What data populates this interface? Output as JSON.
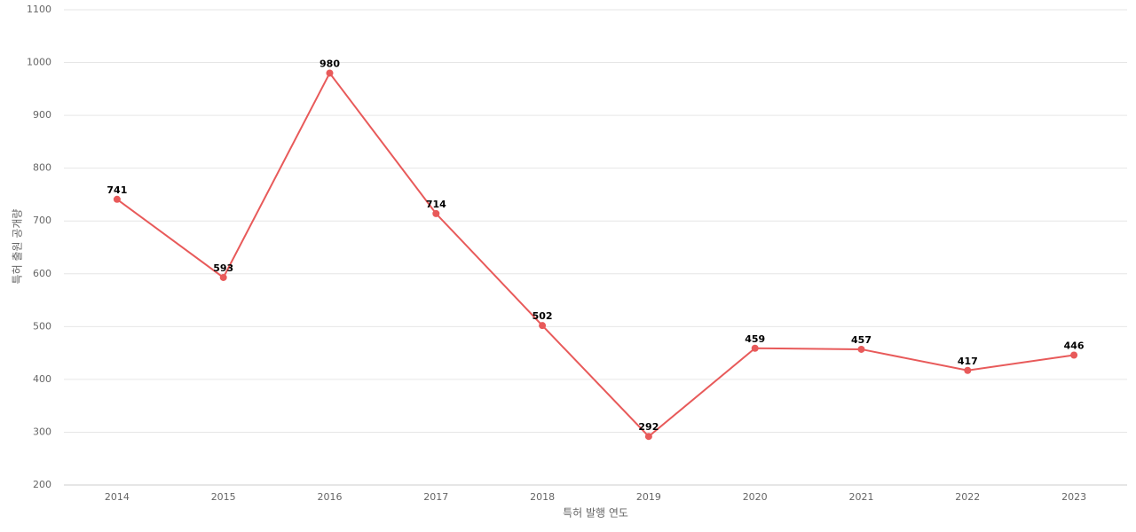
{
  "chart_data": {
    "type": "line",
    "x_label": "특허 발행 연도",
    "y_label": "특허 출원 공개량",
    "categories": [
      "2014",
      "2015",
      "2016",
      "2017",
      "2018",
      "2019",
      "2020",
      "2021",
      "2022",
      "2023"
    ],
    "series": [
      {
        "name": "특허 출원 공개량",
        "color": "#e85a5a",
        "values": [
          741,
          593,
          980,
          714,
          502,
          292,
          459,
          457,
          417,
          446
        ]
      }
    ],
    "ylim": [
      200,
      1100
    ],
    "yticks": [
      200,
      300,
      400,
      500,
      600,
      700,
      800,
      900,
      1000,
      1100
    ],
    "grid": true
  }
}
